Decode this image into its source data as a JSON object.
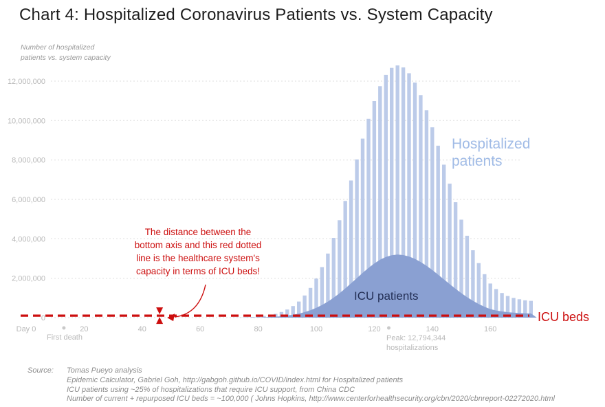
{
  "title": "Chart 4: Hospitalized Coronavirus Patients vs. System Capacity",
  "axis_note": "Number of hospitalized\npatients vs. system capacity",
  "annotations": {
    "red_note": "The distance between the\nbottom axis and this red dotted\nline is the healthcare system's\ncapacity in terms of ICU beds!",
    "first_death": "First death",
    "peak": "Peak: 12,794,344\nhospitalizations",
    "hospitalized_label": "Hospitalized\npatients",
    "icu_patients_label": "ICU patients",
    "icu_beds_label": "ICU beds"
  },
  "source": {
    "label": "Source:",
    "lines": [
      "Tomas Pueyo analysis",
      "Epidemic Calculator, Gabriel Goh, http://gabgoh.github.io/COVID/index.html for Hospitalized patients",
      "ICU patients using ~25% of hospitalizations that require ICU support, from China CDC",
      "Number of current + repurposed ICU beds = ~100,000 ( Johns Hopkins, http://www.centerforhealthsecurity.org/cbn/2020/cbnreport-02272020.html"
    ]
  },
  "colors": {
    "bar": "#bccbe9",
    "icu_area": "#8aa0d2",
    "red": "#cc0e0e",
    "grid": "#dddddd",
    "axis_text": "#b8b8b8",
    "dot": "#c9c9c9",
    "hospitalized_label": "#a0bbe6",
    "icu_label": "#232f55",
    "note_gray": "#b9b9b9",
    "source_text": "#8b8b8b"
  },
  "chart_data": {
    "type": "bar",
    "title": "Hospitalized Coronavirus Patients vs. System Capacity",
    "xlabel": "Day",
    "ylabel": "Number of hospitalized patients vs. system capacity",
    "legend_position": "in-plot labels",
    "grid": "dotted horizontal",
    "x_ticks": [
      0,
      20,
      40,
      60,
      80,
      100,
      120,
      140,
      160
    ],
    "y_ticks": [
      0,
      2000000,
      4000000,
      6000000,
      8000000,
      10000000,
      12000000
    ],
    "xlim": [
      0,
      178
    ],
    "ylim": [
      0,
      13000000
    ],
    "icu_beds": 100000,
    "icu_fraction": 0.25,
    "peak": {
      "day": 128,
      "value": 12794344
    },
    "peak_marker_day": 125,
    "first_death_day": 13,
    "marker_day": 46,
    "days": [
      70,
      72,
      74,
      76,
      78,
      80,
      82,
      84,
      86,
      88,
      90,
      92,
      94,
      96,
      98,
      100,
      102,
      104,
      106,
      108,
      110,
      112,
      114,
      116,
      118,
      120,
      122,
      124,
      126,
      128,
      130,
      132,
      134,
      136,
      138,
      140,
      142,
      144,
      146,
      148,
      150,
      152,
      154,
      156,
      158,
      160,
      162,
      164,
      166,
      168,
      170,
      172,
      174
    ],
    "series": [
      {
        "name": "Hospitalized patients",
        "style": "bar",
        "values": [
          4000,
          7000,
          12000,
          21000,
          34000,
          54000,
          84000,
          128000,
          193000,
          285000,
          413000,
          587000,
          818000,
          1122000,
          1506000,
          1983000,
          2563000,
          3251000,
          4047000,
          4942000,
          5921000,
          6960000,
          8028000,
          9085000,
          10087000,
          10988000,
          11745000,
          12317000,
          12673000,
          12794344,
          12695000,
          12400000,
          11925000,
          11291000,
          10525000,
          9657000,
          8724000,
          7760000,
          6795000,
          5857000,
          4972000,
          4154000,
          3417000,
          2766000,
          2206000,
          1731000,
          1450000,
          1250000,
          1100000,
          1000000,
          930000,
          880000,
          850000
        ]
      },
      {
        "name": "ICU patients",
        "style": "area",
        "values": [
          1000,
          1750,
          3000,
          5250,
          8500,
          13500,
          21000,
          32000,
          48250,
          71250,
          103250,
          146750,
          204500,
          280500,
          376500,
          495750,
          640750,
          812750,
          1011750,
          1235500,
          1480250,
          1740000,
          2007000,
          2271250,
          2521750,
          2747000,
          2936250,
          3079250,
          3168250,
          3198586,
          3173750,
          3100000,
          2981250,
          2822750,
          2631250,
          2414250,
          2181000,
          1940000,
          1698750,
          1464250,
          1243000,
          1038500,
          854250,
          691500,
          551500,
          432750,
          362500,
          312500,
          275000,
          250000,
          232500,
          220000,
          212500
        ]
      }
    ]
  }
}
